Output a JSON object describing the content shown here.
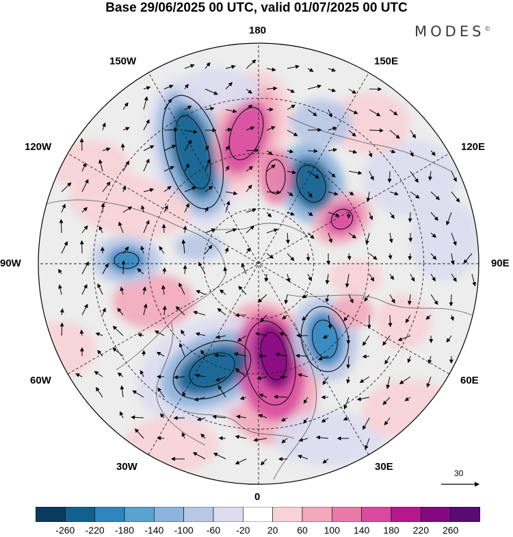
{
  "title": "Base 29/06/2025 00 UTC, valid 01/07/2025 00 UTC",
  "brand": "MODES",
  "brand_mark": "©",
  "map": {
    "projection": "north polar stereographic",
    "longitude_labels": {
      "top": "180",
      "bottom": "0",
      "left": "90W",
      "right": "90E",
      "upper_left": "150W",
      "upper_right": "150E",
      "left_upper": "120W",
      "right_upper": "120E",
      "left_lower": "60W",
      "right_lower": "60E",
      "lower_left": "30W",
      "lower_right": "30E"
    },
    "wind_reference_value": "30",
    "colors": {
      "land_background": "#e8e8e8",
      "coast": "#444444"
    }
  },
  "colorbar": {
    "labels": [
      "-260",
      "-220",
      "-180",
      "-140",
      "-100",
      "-60",
      "-20",
      "20",
      "60",
      "100",
      "140",
      "180",
      "220",
      "260"
    ],
    "colors": [
      "#0b3a5e",
      "#11618f",
      "#2f85c0",
      "#5aa2cf",
      "#8db4dd",
      "#b8c7e6",
      "#dcdcef",
      "#ffffff",
      "#f7d2d6",
      "#f2a9bb",
      "#e97aa8",
      "#d94a9f",
      "#b5178f",
      "#84087f",
      "#5a0a73"
    ]
  }
}
